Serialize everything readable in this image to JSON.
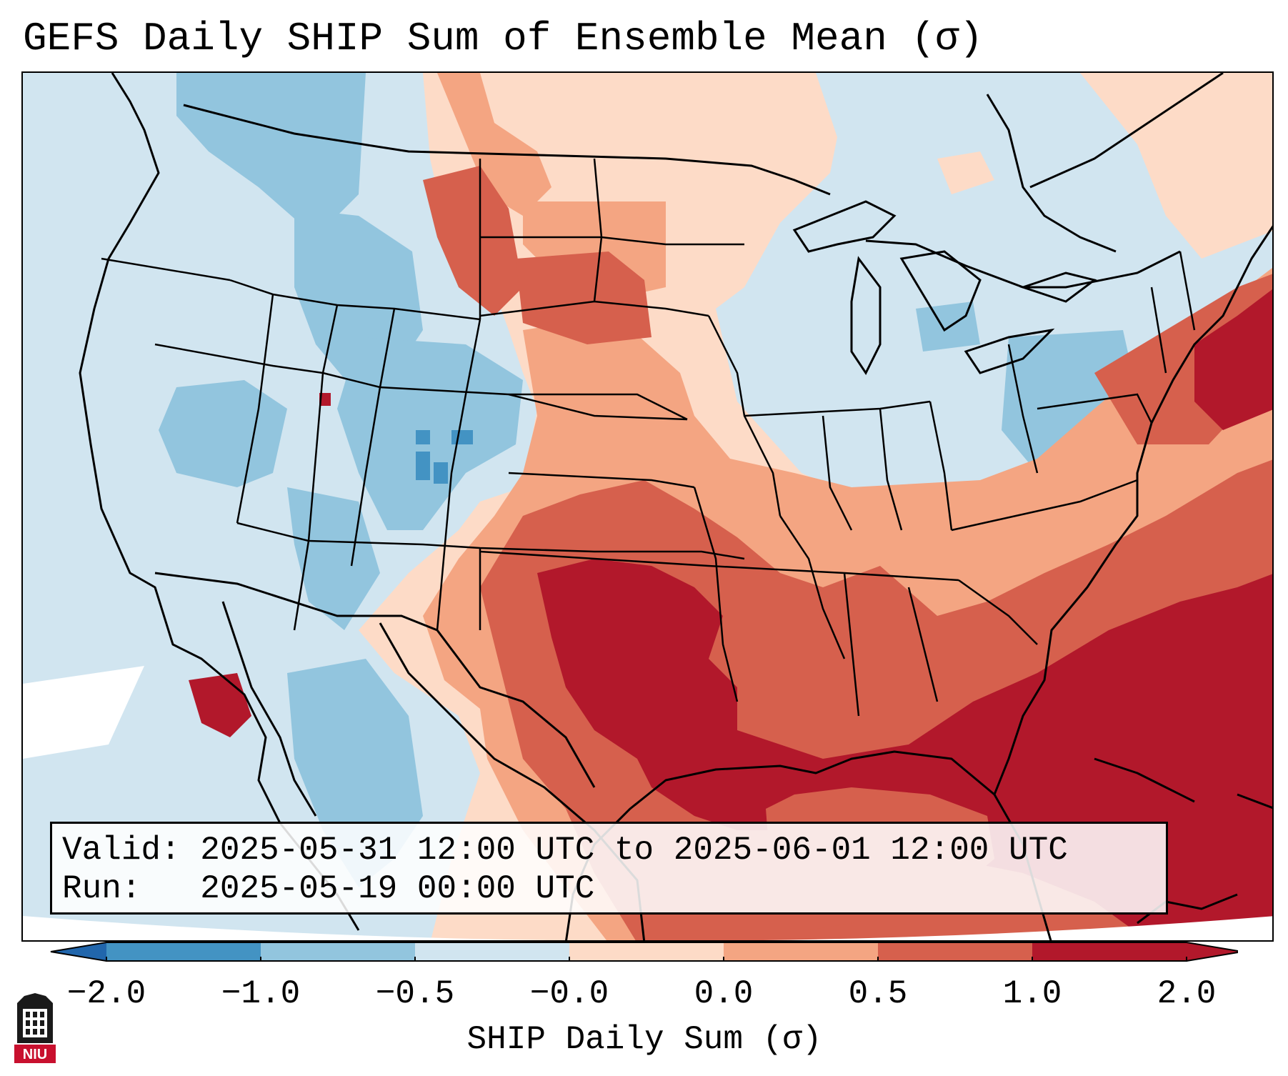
{
  "title": "GEFS Daily SHIP Sum of Ensemble Mean (σ)",
  "info": {
    "valid": "Valid: 2025-05-31 12:00 UTC to 2025-06-01 12:00 UTC",
    "run": "Run:   2025-05-19 00:00 UTC"
  },
  "colorbar": {
    "label": "SHIP Daily Sum (σ)",
    "ticks": [
      "−2.0",
      "−1.0",
      "−0.5",
      "−0.0",
      "0.0",
      "0.5",
      "1.0",
      "2.0"
    ],
    "colors": [
      "#4393c3",
      "#92c5de",
      "#d1e5f0",
      "#ffffff",
      "#fddbc7",
      "#f4a582",
      "#d6604d",
      "#b2182b"
    ],
    "extend_low": "#2166ac",
    "extend_high": "#b2182b"
  },
  "logo_text": "NIU"
}
